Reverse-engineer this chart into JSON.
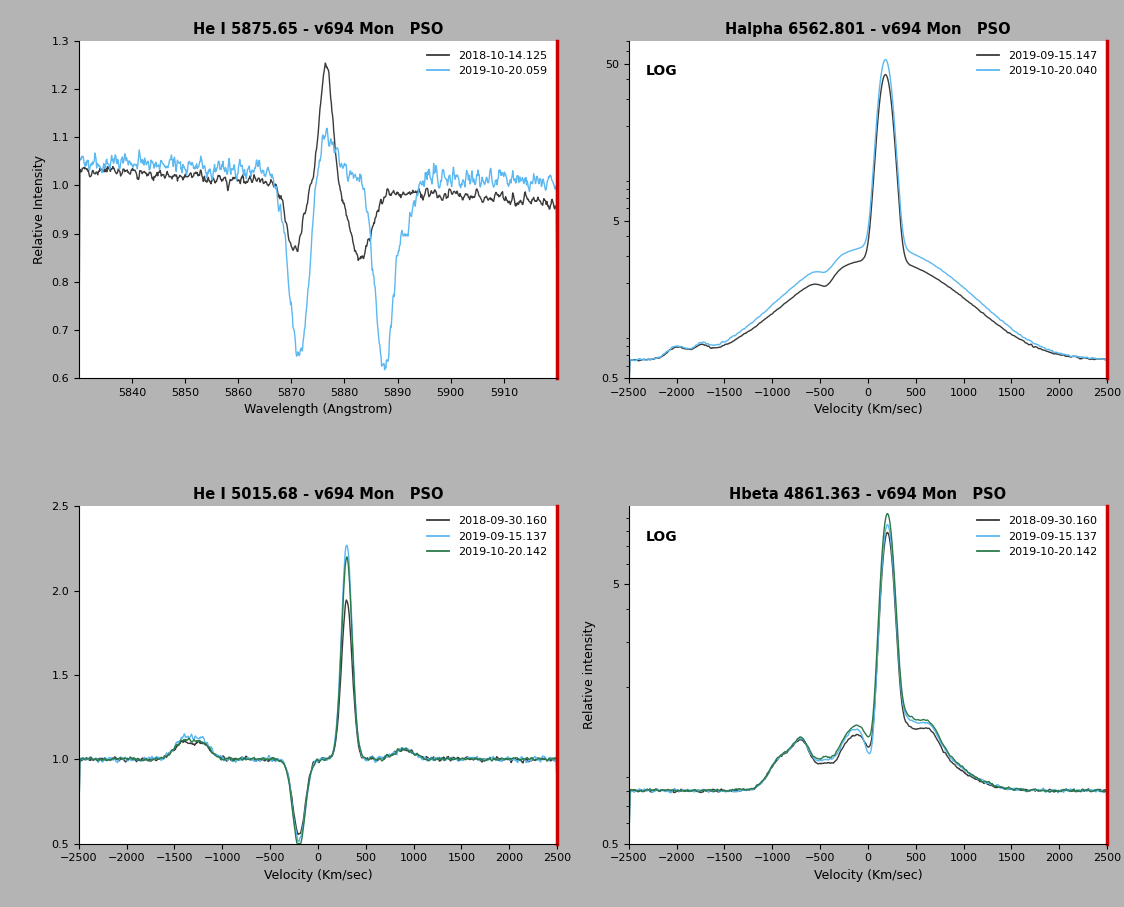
{
  "fig_bg": "#b4b4b4",
  "panel_bg": "#ffffff",
  "title_fontsize": 10.5,
  "axis_fontsize": 9,
  "tick_fontsize": 8,
  "legend_fontsize": 8,
  "panel_titles": [
    "He I 5875.65 - v694 Mon   PSO",
    "Halpha 6562.801 - v694 Mon   PSO",
    "He I 5015.68 - v694 Mon   PSO",
    "Hbeta 4861.363 - v694 Mon   PSO"
  ],
  "p1": {
    "xlabel": "Wavelength (Angstrom)",
    "ylabel": "Relative Intensity",
    "xlim": [
      5830,
      5920
    ],
    "ylim": [
      0.6,
      1.3
    ],
    "yticks": [
      0.6,
      0.7,
      0.8,
      0.9,
      1.0,
      1.1,
      1.2,
      1.3
    ],
    "xticks": [
      5840,
      5850,
      5860,
      5870,
      5880,
      5890,
      5900,
      5910
    ],
    "series": [
      {
        "label": "2018-10-14.125",
        "color": "#3a3a3a",
        "lw": 1.0
      },
      {
        "label": "2019-10-20.059",
        "color": "#5cb8f0",
        "lw": 1.0
      }
    ]
  },
  "p2": {
    "xlabel": "Velocity (Km/sec)",
    "ylabel": "",
    "xlim": [
      -2500,
      2500
    ],
    "ylim_log": [
      0.5,
      70
    ],
    "log_scale": true,
    "log_label": "LOG",
    "yticks_log": [
      0.5,
      5,
      50
    ],
    "xticks": [
      -2500,
      -2000,
      -1500,
      -1000,
      -500,
      0,
      500,
      1000,
      1500,
      2000,
      2500
    ],
    "series": [
      {
        "label": "2019-09-15.147",
        "color": "#3a3a3a",
        "lw": 1.0
      },
      {
        "label": "2019-10-20.040",
        "color": "#5cb8f0",
        "lw": 1.0
      }
    ]
  },
  "p3": {
    "xlabel": "Velocity (Km/sec)",
    "ylabel": "",
    "xlim": [
      -2500,
      2500
    ],
    "ylim": [
      0.5,
      2.5
    ],
    "yticks": [
      0.5,
      1.0,
      1.5,
      2.0,
      2.5
    ],
    "xticks": [
      -2500,
      -2000,
      -1500,
      -1000,
      -500,
      0,
      500,
      1000,
      1500,
      2000,
      2500
    ],
    "series": [
      {
        "label": "2018-09-30.160",
        "color": "#3a3a3a",
        "lw": 1.0
      },
      {
        "label": "2019-09-15.137",
        "color": "#5cb8f0",
        "lw": 1.0
      },
      {
        "label": "2019-10-20.142",
        "color": "#2a7a4a",
        "lw": 1.0
      }
    ]
  },
  "p4": {
    "xlabel": "Velocity (Km/sec)",
    "ylabel": "Relative intensity",
    "xlim": [
      -2500,
      2500
    ],
    "ylim_log": [
      0.5,
      10
    ],
    "log_scale": true,
    "log_label": "LOG",
    "yticks_log": [
      0.5,
      5
    ],
    "xticks": [
      -2500,
      -2000,
      -1500,
      -1000,
      -500,
      0,
      500,
      1000,
      1500,
      2000,
      2500
    ],
    "series": [
      {
        "label": "2018-09-30.160",
        "color": "#3a3a3a",
        "lw": 1.0
      },
      {
        "label": "2019-09-15.137",
        "color": "#5cb8f0",
        "lw": 1.0
      },
      {
        "label": "2019-10-20.142",
        "color": "#2a7a4a",
        "lw": 1.0
      }
    ]
  }
}
